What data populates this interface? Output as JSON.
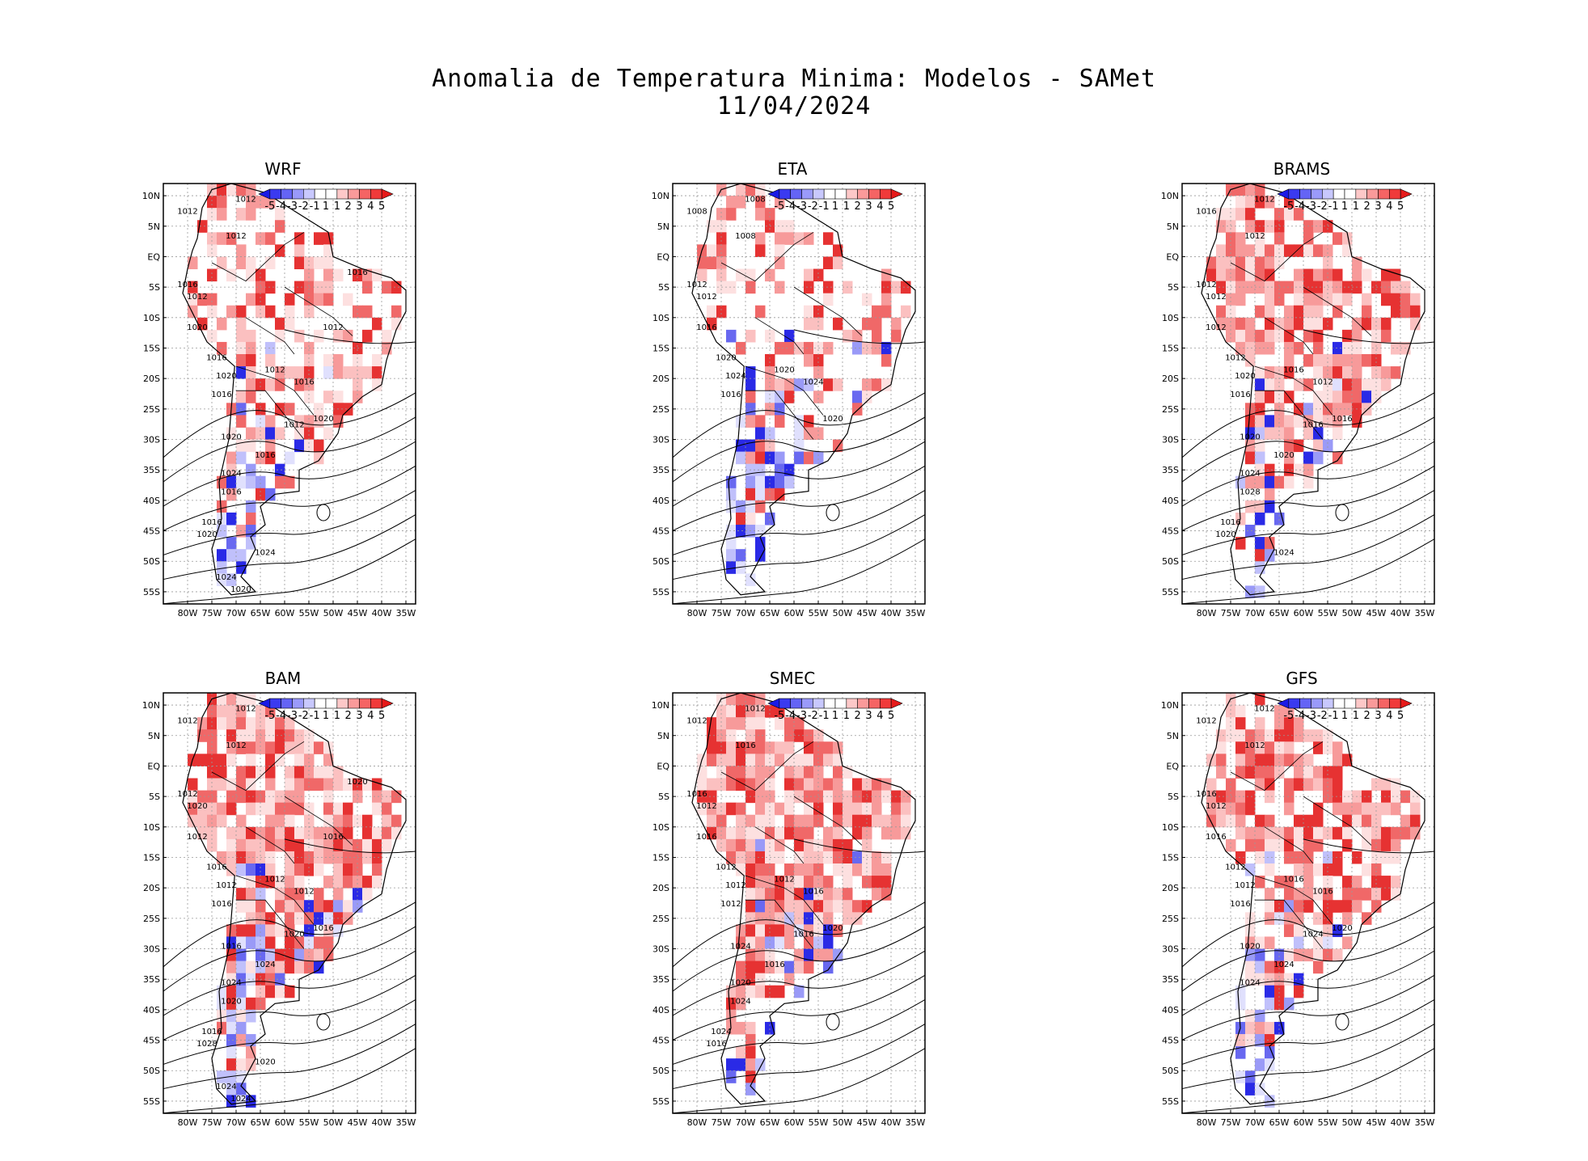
{
  "title": "Anomalia de Temperatura Minima: Modelos - SAMet",
  "date": "11/04/2024",
  "colorbar": {
    "labels": [
      "-5",
      "-4",
      "-3",
      "-2",
      "-1",
      "1",
      "1",
      "2",
      "3",
      "4",
      "5"
    ],
    "colors": [
      "#1a1ae6",
      "#3a3af0",
      "#6464f5",
      "#9a9afa",
      "#c8c8fd",
      "#ffffff",
      "#ffffff",
      "#fdc8c8",
      "#fa9a9a",
      "#f56464",
      "#f03a3a",
      "#e61a1a"
    ]
  },
  "axes": {
    "lat_labels": [
      "10N",
      "5N",
      "EQ",
      "5S",
      "10S",
      "15S",
      "20S",
      "25S",
      "30S",
      "35S",
      "40S",
      "45S",
      "50S",
      "55S"
    ],
    "lon_labels": [
      "80W",
      "75W",
      "70W",
      "65W",
      "60W",
      "55W",
      "50W",
      "45W",
      "40W",
      "35W"
    ]
  },
  "panels": [
    {
      "name": "WRF",
      "warm": 0.45,
      "cold": 0.55,
      "isobars": [
        "1012",
        "1012",
        "1012",
        "1016",
        "1012",
        "1020",
        "1016",
        "1020",
        "1016",
        "1012",
        "1016",
        "1020",
        "1012",
        "1020",
        "1016",
        "1024",
        "1016",
        "1016",
        "1020",
        "1024",
        "1024",
        "1020",
        "1016",
        "1012"
      ]
    },
    {
      "name": "ETA",
      "warm": 0.35,
      "cold": 0.65,
      "isobars": [
        "1008",
        "1008",
        "1008",
        "1012",
        "1012",
        "1016",
        "1020",
        "1024",
        "1016",
        "1020",
        "1024",
        "1020"
      ]
    },
    {
      "name": "BRAMS",
      "warm": 0.75,
      "cold": 0.3,
      "isobars": [
        "1012",
        "1016",
        "1012",
        "1012",
        "1012",
        "1012",
        "1012",
        "1020",
        "1016",
        "1016",
        "1012",
        "1016",
        "1016",
        "1020",
        "1020",
        "1024",
        "1028",
        "1016",
        "1020",
        "1024"
      ]
    },
    {
      "name": "BAM",
      "warm": 0.8,
      "cold": 0.45,
      "isobars": [
        "1012",
        "1012",
        "1012",
        "1012",
        "1020",
        "1012",
        "1016",
        "1012",
        "1016",
        "1012",
        "1012",
        "1016",
        "1020",
        "1016",
        "1024",
        "1024",
        "1020",
        "1016",
        "1028",
        "1020",
        "1024",
        "1024",
        "1020",
        "1016"
      ]
    },
    {
      "name": "SMEC",
      "warm": 0.85,
      "cold": 0.3,
      "isobars": [
        "1012",
        "1012",
        "1016",
        "1016",
        "1012",
        "1016",
        "1012",
        "1012",
        "1012",
        "1012",
        "1016",
        "1020",
        "1016",
        "1024",
        "1016",
        "1020",
        "1024",
        "1024",
        "1016"
      ]
    },
    {
      "name": "GFS",
      "warm": 0.7,
      "cold": 0.3,
      "isobars": [
        "1012",
        "1012",
        "1012",
        "1016",
        "1012",
        "1016",
        "1012",
        "1012",
        "1016",
        "1016",
        "1016",
        "1020",
        "1024",
        "1020",
        "1024",
        "1024"
      ]
    }
  ]
}
